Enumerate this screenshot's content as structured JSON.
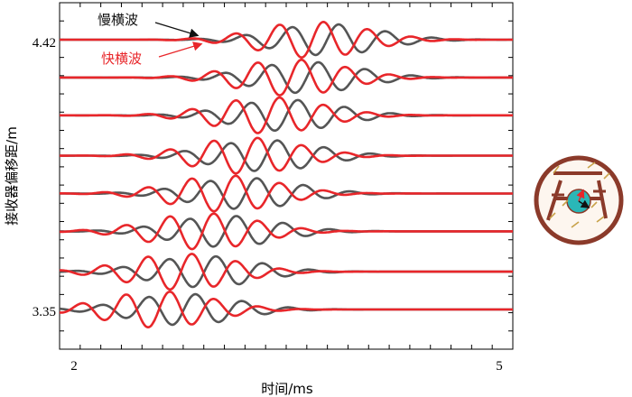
{
  "chart_data": {
    "type": "line",
    "xlabel": "时间/ms",
    "ylabel": "接收器偏移距/m",
    "xlim": [
      1.95,
      5.05
    ],
    "x_ticks": [
      "2",
      "5"
    ],
    "y_ticks": [
      "4.42",
      "3.35"
    ],
    "ylim": [
      3.35,
      4.42
    ],
    "grid": false,
    "legend": [
      {
        "label": "慢横波",
        "color": "#555555"
      },
      {
        "label": "快横波",
        "color": "#e8262a"
      }
    ],
    "receiver_offsets_m": [
      4.42,
      4.27,
      4.12,
      3.96,
      3.81,
      3.66,
      3.5,
      3.35
    ],
    "series": [
      {
        "name": "慢横波",
        "color": "#555555",
        "freq_khz": 3.1,
        "arrival_ms": [
          3.78,
          3.64,
          3.5,
          3.36,
          3.22,
          3.08,
          2.94,
          2.8
        ],
        "amplitude_m": 0.062
      },
      {
        "name": "快横波",
        "color": "#e8262a",
        "freq_khz": 3.3,
        "arrival_ms": [
          3.68,
          3.53,
          3.38,
          3.23,
          3.08,
          2.93,
          2.78,
          2.63
        ],
        "amplitude_m": 0.072
      }
    ]
  },
  "colors": {
    "borehole_ring": "#8b3a2a",
    "borehole_fill": "#fdf6ef",
    "tool_body": "#2ab7b7",
    "tool_arm": "#8b3a2a",
    "fracture": "#c8a24a",
    "fast_arrow": "#e8262a",
    "slow_arrow": "#111111"
  }
}
